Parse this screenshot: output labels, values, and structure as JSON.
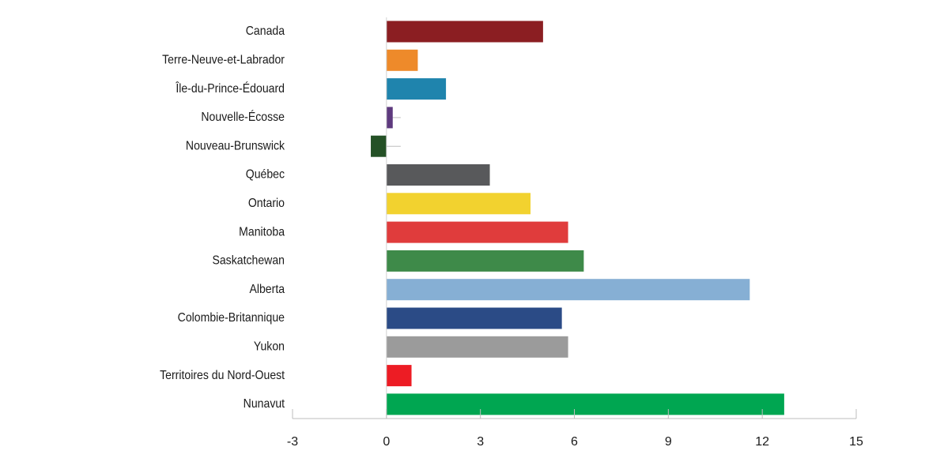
{
  "chart_data": {
    "type": "bar",
    "orientation": "horizontal",
    "title": "",
    "xlabel": "",
    "ylabel": "",
    "xlim": [
      -3,
      15
    ],
    "xticks": [
      -3,
      0,
      3,
      6,
      9,
      12,
      15
    ],
    "grid": false,
    "legend": "none",
    "categories": [
      "Canada",
      "Terre-Neuve-et-Labrador",
      "Île-du-Prince-Édouard",
      "Nouvelle-Écosse",
      "Nouveau-Brunswick",
      "Québec",
      "Ontario",
      "Manitoba",
      "Saskatchewan",
      "Alberta",
      "Colombie-Britannique",
      "Yukon",
      "Territoires du Nord-Ouest",
      "Nunavut"
    ],
    "values": [
      5.0,
      1.0,
      1.9,
      0.2,
      -0.5,
      3.3,
      4.6,
      5.8,
      6.3,
      11.6,
      5.6,
      5.8,
      0.8,
      12.7
    ],
    "colors": [
      "#8b1e22",
      "#ee8a2a",
      "#1f84ad",
      "#5e3a7e",
      "#245126",
      "#58595b",
      "#f2d22f",
      "#e03c3c",
      "#3e8a49",
      "#86afd4",
      "#2b4b86",
      "#9b9b9b",
      "#ed1c24",
      "#00a651"
    ]
  }
}
